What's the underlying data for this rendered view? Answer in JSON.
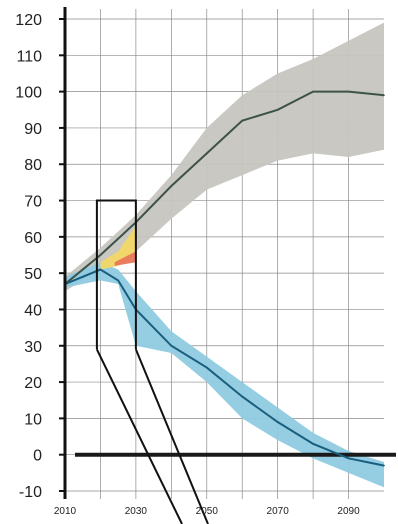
{
  "chart_data": {
    "type": "area",
    "title": "",
    "xlabel": "",
    "ylabel": "",
    "xlim": [
      2010,
      2100
    ],
    "ylim": [
      -10,
      120
    ],
    "x_ticks": [
      "2010",
      "2030",
      "2050",
      "2070",
      "2090"
    ],
    "y_ticks": [
      "120",
      "110",
      "100",
      "90",
      "80",
      "70",
      "60",
      "50",
      "40",
      "30",
      "20",
      "10",
      "0",
      "-10"
    ],
    "grid": true,
    "legend": "none",
    "series": [
      {
        "style": "band",
        "color": "#c6c5bf",
        "x": [
          2010,
          2020,
          2030,
          2040,
          2050,
          2060,
          2070,
          2080,
          2090,
          2100
        ],
        "upper": [
          49,
          57,
          66,
          77,
          90,
          99,
          105,
          109,
          114,
          119
        ],
        "lower": [
          45,
          51,
          56,
          65,
          73,
          77,
          81,
          83,
          82,
          84
        ]
      },
      {
        "style": "band",
        "color": "#8fcbe0",
        "x": [
          2010,
          2020,
          2025,
          2030,
          2040,
          2050,
          2060,
          2070,
          2080,
          2090,
          2100
        ],
        "upper": [
          49,
          53,
          51,
          45,
          34,
          27,
          20,
          13,
          6,
          1,
          -2
        ],
        "lower": [
          46,
          48,
          47,
          30,
          28,
          20,
          10,
          4,
          -1,
          -5,
          -9
        ]
      },
      {
        "style": "band",
        "color": "#f2d766",
        "x": [
          2020,
          2025,
          2030
        ],
        "upper": [
          53,
          56,
          63
        ],
        "lower": [
          51,
          52,
          55
        ]
      },
      {
        "style": "band",
        "color": "#e8775a",
        "x": [
          2024,
          2030
        ],
        "upper": [
          53,
          56
        ],
        "lower": [
          52,
          53
        ]
      },
      {
        "style": "line",
        "color": "#3d5249",
        "x": [
          2010,
          2020,
          2030,
          2040,
          2050,
          2060,
          2070,
          2080,
          2090,
          2100
        ],
        "values": [
          47,
          55,
          64,
          74,
          83,
          92,
          95,
          100,
          100,
          99
        ]
      },
      {
        "style": "line",
        "color": "#1a5e7e",
        "x": [
          2010,
          2020,
          2025,
          2030,
          2040,
          2050,
          2060,
          2070,
          2080,
          2090,
          2100
        ],
        "values": [
          47,
          51,
          48,
          40,
          30,
          24,
          16,
          9,
          3,
          -1,
          -3
        ]
      }
    ],
    "zero_line": 0,
    "callout_box": {
      "x_range": [
        2019,
        2030
      ],
      "y_range": [
        29,
        70
      ]
    }
  }
}
